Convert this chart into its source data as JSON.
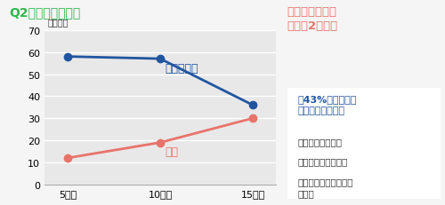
{
  "title": "Q2：目の疲れは？",
  "title_color": "#2db84b",
  "ylabel": "（人数）",
  "x_labels": [
    "5日目",
    "10日目",
    "15日目"
  ],
  "x_values": [
    0,
    1,
    2
  ],
  "line1_label": "わからない",
  "line1_values": [
    58,
    57,
    36
  ],
  "line1_color": "#2155a0",
  "line2_label": "改善",
  "line2_values": [
    12,
    19,
    30
  ],
  "line2_color": "#e8736a",
  "ylim": [
    0,
    70
  ],
  "yticks": [
    0,
    10,
    20,
    30,
    40,
    50,
    60,
    70
  ],
  "plot_bg": "#e8e8e8",
  "fig_bg": "#f5f5f5",
  "right_title": "「目の疲れ」の\n改善は2週間！",
  "right_title_color": "#e8736a",
  "box_title": "約43%の方が目の\n疲れの改善を実感",
  "box_title_color": "#2155a0",
  "box_bullets": [
    "・疲れなくなった",
    "・充血しなくなった",
    "・目薬の回数が減った\n　など"
  ],
  "box_border_color": "#7ab4d8",
  "box_bg_color": "#ffffff"
}
